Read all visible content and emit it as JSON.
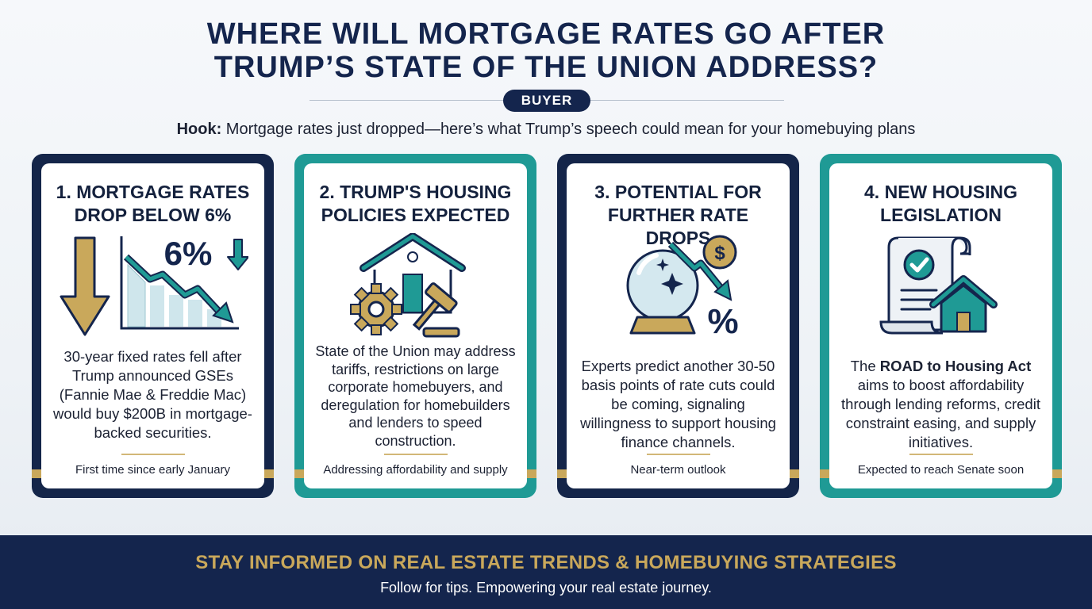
{
  "header": {
    "title_line1": "WHERE WILL MORTGAGE RATES GO AFTER",
    "title_line2": "TRUMP’S STATE OF THE UNION ADDRESS?",
    "badge": "BUYER",
    "hook_label": "Hook:",
    "hook_text": " Mortgage rates just dropped—here’s what Trump’s speech could mean for your homebuying plans"
  },
  "cards": [
    {
      "title_line1": "1. MORTGAGE RATES",
      "title_line2": "DROP BELOW 6%",
      "illustration_label": "6%",
      "body": "30-year fixed rates fell after Trump announced GSEs (Fannie Mae & Freddie Mac) would buy $200B in mortgage-backed securities.",
      "footnote": "First time since early January",
      "icon": "rate-drop-chart-icon"
    },
    {
      "title_line1": "2. TRUMP'S HOUSING",
      "title_line2": "POLICIES EXPECTED",
      "body": "State of the Union may address tariffs, restrictions on large corporate homebuyers, and deregulation for homebuilders and lenders to speed construction.",
      "footnote": "Addressing affordability and supply",
      "icon": "house-gear-gavel-icon"
    },
    {
      "title_line1": "3. POTENTIAL FOR",
      "title_line2": "FURTHER RATE DROPS",
      "illustration_label_dollar": "$",
      "illustration_label_percent": "%",
      "body": "Experts predict another 30-50 basis points of rate cuts could be coming, signaling willingness to support housing finance channels.",
      "footnote": "Near-term outlook",
      "icon": "crystal-ball-icon"
    },
    {
      "title_line1": "4. NEW HOUSING",
      "title_line2": "LEGISLATION",
      "body_pre": "The ",
      "body_bold": "ROAD to Housing Act",
      "body_post": " aims to boost affordability through lending reforms, credit constraint easing, and supply initiatives.",
      "footnote": "Expected to reach Senate soon",
      "icon": "legislation-document-house-icon"
    }
  ],
  "footer": {
    "title": "STAY INFORMED ON REAL ESTATE TRENDS & HOMEBUYING STRATEGIES",
    "subtitle": "Follow for tips. Empowering your real estate journey."
  },
  "colors": {
    "navy": "#142549",
    "teal": "#1f9a95",
    "gold": "#c9a85b",
    "background": "#eef2f6"
  }
}
